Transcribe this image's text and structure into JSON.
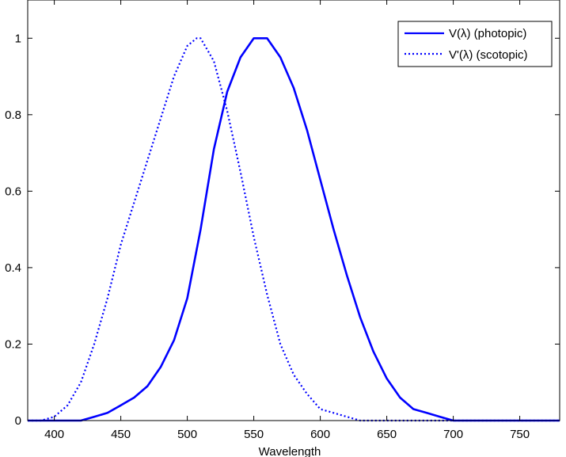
{
  "chart_data": {
    "type": "line",
    "title": "",
    "xlabel": "Wavelength",
    "ylabel": "",
    "xlim": [
      380,
      780
    ],
    "ylim": [
      0,
      1.1
    ],
    "xticks": [
      400,
      450,
      500,
      550,
      600,
      650,
      700,
      750
    ],
    "yticks": [
      0,
      0.2,
      0.4,
      0.6,
      0.8,
      1
    ],
    "grid": false,
    "legend_position": "top-right",
    "series": [
      {
        "name": "V(λ) (photopic)",
        "style": "solid",
        "color": "#0000ff",
        "x": [
          380,
          390,
          400,
          410,
          420,
          430,
          440,
          450,
          460,
          470,
          480,
          490,
          500,
          510,
          520,
          530,
          540,
          550,
          555,
          560,
          570,
          580,
          590,
          600,
          610,
          620,
          630,
          640,
          650,
          660,
          670,
          680,
          690,
          700,
          710,
          720,
          730,
          740,
          750,
          760,
          770,
          780
        ],
        "values": [
          0.0,
          0.0,
          0.0,
          0.0,
          0.0,
          0.01,
          0.02,
          0.04,
          0.06,
          0.09,
          0.14,
          0.21,
          0.32,
          0.5,
          0.71,
          0.86,
          0.95,
          1.0,
          1.0,
          1.0,
          0.95,
          0.87,
          0.76,
          0.63,
          0.5,
          0.38,
          0.27,
          0.18,
          0.11,
          0.06,
          0.03,
          0.02,
          0.01,
          0.0,
          0.0,
          0.0,
          0.0,
          0.0,
          0.0,
          0.0,
          0.0,
          0.0
        ]
      },
      {
        "name": "V'(λ) (scotopic)",
        "style": "dotted",
        "color": "#0000ff",
        "x": [
          380,
          390,
          400,
          410,
          420,
          430,
          440,
          450,
          460,
          470,
          480,
          490,
          500,
          507,
          510,
          520,
          530,
          540,
          550,
          560,
          570,
          580,
          590,
          600,
          610,
          620,
          630,
          640,
          650,
          660,
          670,
          680,
          690,
          700,
          710,
          720,
          730,
          740,
          750,
          760,
          770,
          780
        ],
        "values": [
          0.0,
          0.0,
          0.01,
          0.04,
          0.1,
          0.2,
          0.32,
          0.46,
          0.57,
          0.68,
          0.79,
          0.9,
          0.98,
          1.0,
          1.0,
          0.94,
          0.81,
          0.65,
          0.48,
          0.33,
          0.2,
          0.12,
          0.07,
          0.03,
          0.02,
          0.01,
          0.0,
          0.0,
          0.0,
          0.0,
          0.0,
          0.0,
          0.0,
          0.0,
          0.0,
          0.0,
          0.0,
          0.0,
          0.0,
          0.0,
          0.0,
          0.0
        ]
      }
    ]
  }
}
